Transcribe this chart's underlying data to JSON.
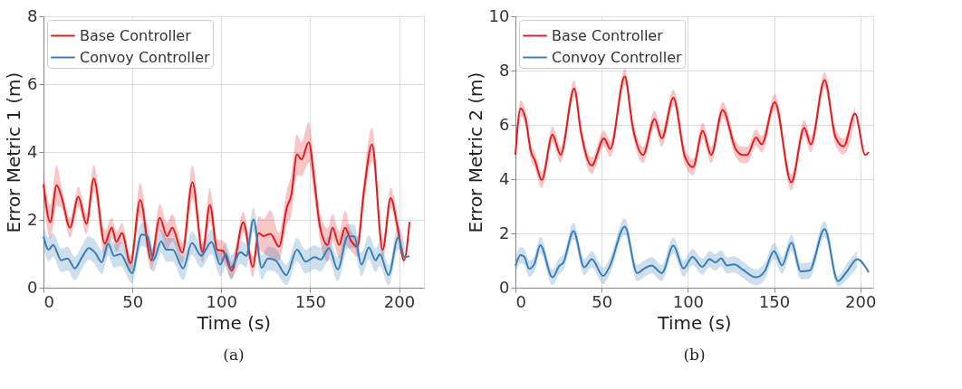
{
  "chart_data": [
    {
      "type": "line",
      "xlabel": "Time (s)",
      "ylabel": "Error Metric 1 (m)",
      "xlim": [
        0,
        214
      ],
      "xticks": [
        0,
        50,
        100,
        150,
        200
      ],
      "ylim": [
        0,
        8
      ],
      "yticks": [
        0,
        2,
        4,
        6,
        8
      ],
      "grid": true,
      "legend": "top left",
      "annotations": [
        "(a)"
      ],
      "series": [
        {
          "name": "Base Controller",
          "color": "#e41a1c",
          "x": [
            0,
            3.8,
            7.4,
            10.3,
            14.9,
            19.6,
            24.2,
            28.3,
            34.5,
            38.4,
            41,
            44.1,
            49,
            54.4,
            60.6,
            65.4,
            69.5,
            72.4,
            78.1,
            83.8,
            89.5,
            93.6,
            97.7,
            101,
            105.9,
            112.4,
            117.8,
            121,
            123.8,
            127.6,
            132.5,
            136.9,
            139.4,
            142.6,
            145.1,
            149.2,
            152.5,
            155.4,
            159.8,
            162.6,
            166.3,
            169.6,
            172.9,
            176.5,
            180.2,
            184.8,
            190.8,
            195.3,
            199,
            202.8,
            205.9
          ],
          "values": [
            3.05,
            1.93,
            3.02,
            2.65,
            1.77,
            2.68,
            1.88,
            3.22,
            1.3,
            1.77,
            1.35,
            1.61,
            0.72,
            2.59,
            0.81,
            2.06,
            1.52,
            1.77,
            1.03,
            3.11,
            1.05,
            2.44,
            1.12,
            1.08,
            0.5,
            1.93,
            0.61,
            1.61,
            1.52,
            1.59,
            1.21,
            2.37,
            2.73,
            3.93,
            3.78,
            4.29,
            3.08,
            1.84,
            1.26,
            1.77,
            1.26,
            1.77,
            1.39,
            1.21,
            2.82,
            4.22,
            1.12,
            2.64,
            1.84,
            0.81,
            1.94
          ],
          "lower": [
            2.65,
            1.43,
            2.42,
            2.35,
            1.47,
            2.38,
            1.58,
            2.82,
            0.9,
            1.47,
            1.05,
            1.31,
            0.47,
            2.09,
            0.51,
            1.66,
            1.12,
            1.37,
            0.73,
            2.61,
            0.75,
            1.94,
            0.82,
            0.78,
            0.25,
            1.63,
            0.31,
            1.11,
            1.02,
            0.89,
            0.81,
            1.87,
            2.13,
            3.33,
            3.28,
            3.69,
            2.58,
            1.44,
            0.76,
            1.37,
            0.86,
            1.27,
            1.09,
            0.91,
            2.42,
            3.72,
            0.82,
            2.34,
            1.54,
            0.71,
            null
          ],
          "upper": [
            3.45,
            2.43,
            3.62,
            2.95,
            2.07,
            2.98,
            2.18,
            3.62,
            1.7,
            2.07,
            1.65,
            1.91,
            0.97,
            3.09,
            1.11,
            2.46,
            1.92,
            2.17,
            1.33,
            3.61,
            1.35,
            2.94,
            1.42,
            1.38,
            0.75,
            2.23,
            0.91,
            2.11,
            2.02,
            2.29,
            1.61,
            2.87,
            3.33,
            4.53,
            4.28,
            4.89,
            3.58,
            2.24,
            1.76,
            2.17,
            1.66,
            2.27,
            1.69,
            1.51,
            3.22,
            4.72,
            1.42,
            2.94,
            2.14,
            0.91,
            null
          ]
        },
        {
          "name": "Convoy Controller",
          "color": "#377eb8",
          "x": [
            0,
            2.9,
            5.4,
            10,
            13.6,
            17.6,
            21.7,
            25.5,
            29.1,
            32.8,
            36.4,
            39.7,
            43.3,
            49.8,
            55.2,
            58.5,
            61.8,
            66.2,
            69.1,
            72.7,
            78.6,
            83.5,
            88.7,
            94.5,
            99.4,
            102.6,
            105.4,
            110.8,
            114.1,
            118.1,
            122.7,
            126.3,
            130.4,
            136.6,
            142.6,
            147.5,
            152.5,
            156,
            160.6,
            165.5,
            171.2,
            174.8,
            178.9,
            183,
            186.8,
            189.2,
            194.1,
            199.5,
            203.1,
            205.9
          ],
          "values": [
            1.51,
            1.12,
            1.26,
            0.81,
            0.86,
            0.57,
            0.9,
            1.17,
            1.03,
            0.75,
            1.3,
            0.94,
            0.99,
            0.43,
            1.57,
            1.52,
            0.81,
            1.37,
            1.12,
            1.12,
            0.57,
            1.32,
            0.94,
            1.35,
            0.68,
            0.99,
            0.59,
            1.05,
            0.94,
            2.01,
            0.59,
            0.86,
            0.81,
            0.37,
            1.12,
            0.77,
            0.9,
            0.83,
            1.17,
            0.54,
            1.52,
            1.51,
            0.68,
            1.19,
            0.81,
            0.99,
            0.37,
            1.48,
            0.9,
            0.93
          ],
          "lower": [
            1.16,
            0.77,
            0.91,
            0.46,
            0.51,
            0.22,
            0.55,
            0.82,
            0.68,
            0.4,
            0.95,
            0.59,
            0.64,
            0.13,
            1.22,
            1.17,
            0.46,
            1.02,
            0.77,
            0.77,
            0.22,
            0.97,
            0.59,
            1.0,
            0.33,
            0.64,
            0.24,
            0.7,
            0.59,
            1.66,
            0.24,
            0.51,
            0.46,
            0.07,
            0.77,
            0.42,
            0.55,
            0.48,
            0.82,
            0.19,
            1.17,
            1.16,
            0.33,
            0.84,
            0.46,
            0.64,
            0.07,
            1.13,
            0.55,
            null
          ],
          "upper": [
            1.86,
            1.47,
            1.61,
            1.16,
            1.21,
            0.92,
            1.25,
            1.52,
            1.38,
            1.1,
            1.65,
            1.29,
            1.34,
            0.73,
            1.92,
            1.87,
            1.16,
            1.72,
            1.47,
            1.47,
            0.92,
            1.67,
            1.29,
            1.7,
            1.03,
            1.34,
            0.94,
            1.4,
            1.29,
            2.36,
            0.94,
            1.21,
            1.16,
            0.67,
            1.47,
            1.12,
            1.25,
            1.18,
            1.52,
            0.89,
            1.87,
            1.86,
            1.03,
            1.54,
            1.16,
            1.34,
            0.67,
            1.83,
            1.25,
            null
          ]
        }
      ]
    },
    {
      "type": "line",
      "xlabel": "Time (s)",
      "ylabel": "Error Metric 2 (m)",
      "xlim": [
        0,
        207.5
      ],
      "xticks": [
        0,
        50,
        100,
        150,
        200
      ],
      "ylim": [
        0,
        10
      ],
      "yticks": [
        0,
        2,
        4,
        6,
        8,
        10
      ],
      "grid": true,
      "legend": "top left",
      "annotations": [
        "(b)"
      ],
      "series": [
        {
          "name": "Base Controller",
          "color": "#e41a1c",
          "x": [
            0,
            3,
            6,
            9,
            11.1,
            15.3,
            21.5,
            26.2,
            34.1,
            37.9,
            44.2,
            51.4,
            55,
            63.4,
            68.1,
            74,
            80.7,
            84.9,
            91.6,
            98.3,
            103,
            108.6,
            113.5,
            120.2,
            127.7,
            131.9,
            134.4,
            139.5,
            142.8,
            150.4,
            160,
            167.5,
            171.3,
            179.3,
            185.6,
            190.3,
            196.9,
            202.9,
            204.9
          ],
          "values": [
            4.9,
            6.6,
            6.2,
            5.0,
            4.72,
            3.97,
            5.64,
            4.89,
            7.34,
            5.78,
            4.5,
            5.5,
            5.11,
            7.78,
            5.89,
            4.89,
            6.22,
            5.5,
            7.0,
            4.83,
            4.44,
            5.78,
            4.89,
            6.55,
            5.11,
            4.89,
            4.89,
            5.53,
            5.28,
            6.83,
            3.88,
            5.89,
            5.28,
            7.65,
            5.55,
            5.2,
            6.42,
            4.89,
            5.0
          ],
          "lower": [
            4.6,
            6.3,
            5.9,
            4.7,
            4.42,
            3.67,
            5.34,
            4.59,
            7.04,
            5.48,
            4.2,
            5.2,
            4.81,
            7.48,
            5.59,
            4.59,
            5.92,
            5.2,
            6.7,
            4.53,
            4.14,
            5.48,
            4.59,
            6.25,
            4.81,
            4.59,
            4.59,
            5.23,
            4.98,
            6.53,
            3.58,
            5.59,
            4.98,
            7.35,
            5.25,
            4.9,
            6.12,
            null,
            null
          ],
          "upper": [
            5.2,
            6.9,
            6.5,
            5.3,
            5.02,
            4.27,
            5.94,
            5.19,
            7.64,
            6.08,
            4.8,
            5.8,
            5.41,
            8.08,
            6.19,
            5.19,
            6.52,
            5.8,
            7.3,
            5.13,
            4.74,
            6.08,
            5.19,
            6.85,
            5.41,
            5.19,
            5.19,
            5.83,
            5.58,
            7.13,
            4.18,
            6.19,
            5.58,
            7.95,
            5.85,
            5.5,
            6.72,
            null,
            null
          ]
        },
        {
          "name": "Convoy Controller",
          "color": "#377eb8",
          "x": [
            0,
            3,
            5,
            8,
            11,
            14.4,
            21.5,
            25.3,
            27.8,
            33.7,
            39.9,
            44.3,
            50.9,
            54.7,
            63.4,
            70.6,
            74.9,
            79,
            84.9,
            91.6,
            97.5,
            102.6,
            108.4,
            112.6,
            116,
            119.3,
            122.7,
            126.9,
            131.9,
            139.5,
            144.5,
            150,
            154.6,
            160.1,
            165.5,
            170.5,
            179.3,
            187,
            192.3,
            198.2,
            204.9
          ],
          "values": [
            0.8,
            1.2,
            1.15,
            0.7,
            0.88,
            1.57,
            0.38,
            0.79,
            0.93,
            2.08,
            0.75,
            1.05,
            0.43,
            0.79,
            2.25,
            0.54,
            0.71,
            0.82,
            0.54,
            1.55,
            0.71,
            1.13,
            0.77,
            1.05,
            0.93,
            1.08,
            0.82,
            0.86,
            0.66,
            0.38,
            0.6,
            1.35,
            0.82,
            1.66,
            0.6,
            0.63,
            2.16,
            0.24,
            0.6,
            1.05,
            0.57
          ],
          "lower": [
            0.5,
            0.9,
            0.85,
            0.4,
            0.58,
            1.27,
            0.08,
            0.49,
            0.63,
            1.78,
            0.45,
            0.75,
            0.13,
            0.49,
            1.95,
            0.24,
            0.41,
            0.52,
            0.24,
            1.25,
            0.41,
            0.83,
            0.47,
            0.75,
            0.63,
            0.78,
            0.52,
            0.56,
            0.36,
            0.08,
            0.3,
            1.05,
            0.52,
            1.36,
            0.3,
            0.33,
            1.86,
            0.04,
            0.3,
            0.75,
            null
          ],
          "upper": [
            1.1,
            1.5,
            1.45,
            1.0,
            1.18,
            1.87,
            0.68,
            1.09,
            1.23,
            2.38,
            1.05,
            1.35,
            0.73,
            1.09,
            2.55,
            0.84,
            1.01,
            1.12,
            0.84,
            1.85,
            1.01,
            1.43,
            1.07,
            1.35,
            1.23,
            1.38,
            1.12,
            1.16,
            0.96,
            0.68,
            0.9,
            1.65,
            1.12,
            1.96,
            0.9,
            0.93,
            2.46,
            0.44,
            0.9,
            1.35,
            null
          ]
        }
      ]
    }
  ]
}
